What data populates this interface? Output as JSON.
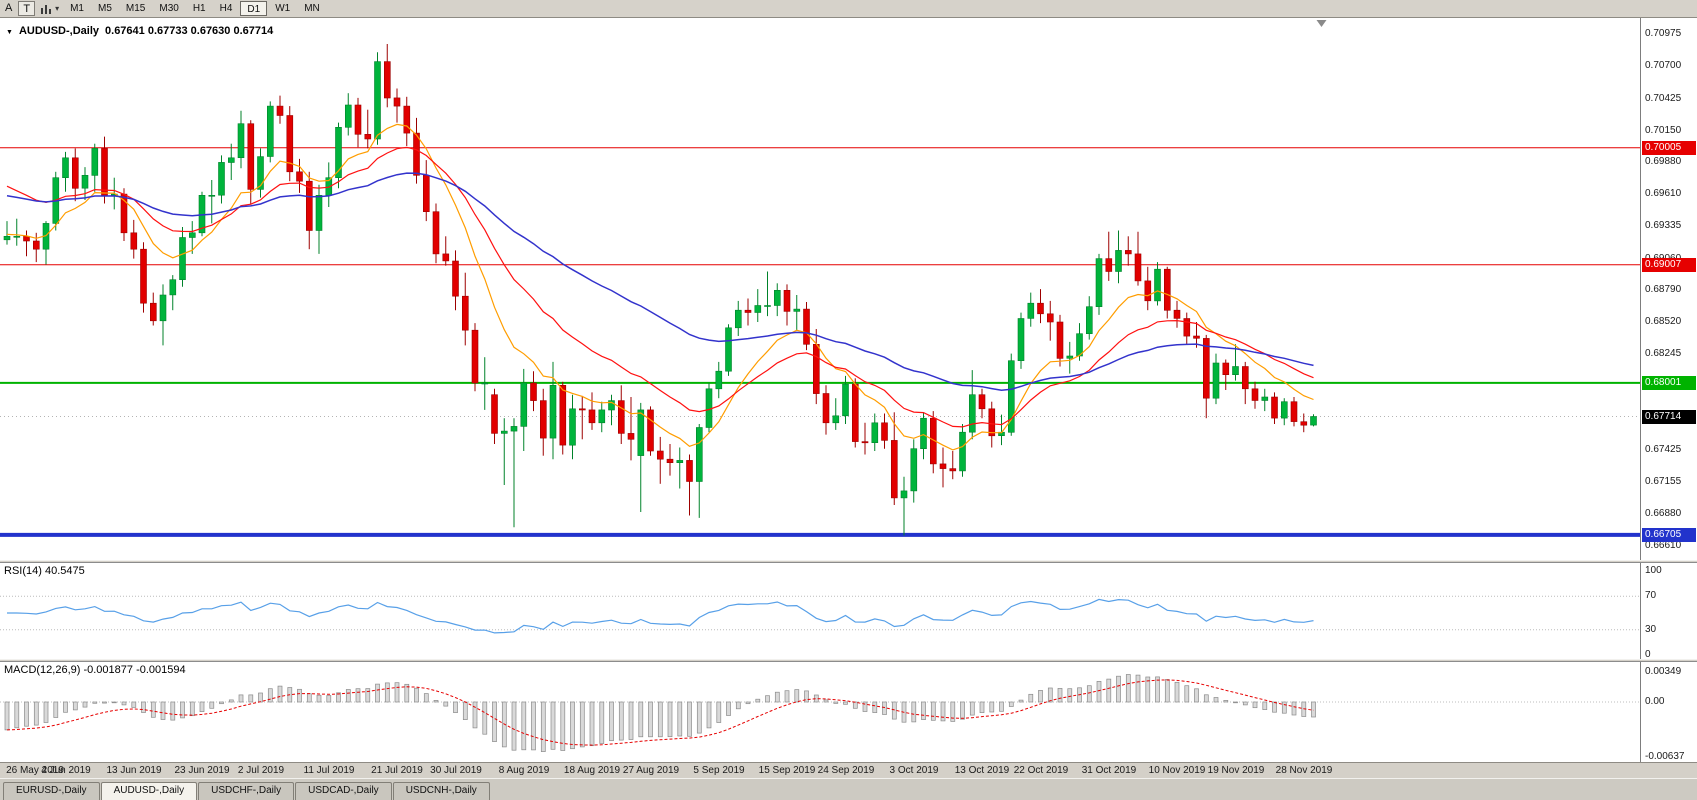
{
  "toolbar": {
    "buttons": [
      {
        "label": "A",
        "boxed": false
      },
      {
        "label": "T",
        "boxed": true
      }
    ],
    "icon": "bar-chart-dropdown-icon",
    "timeframes": [
      {
        "label": "M1"
      },
      {
        "label": "M5"
      },
      {
        "label": "M15"
      },
      {
        "label": "M30"
      },
      {
        "label": "H1"
      },
      {
        "label": "H4"
      },
      {
        "label": "D1",
        "selected": true
      },
      {
        "label": "W1"
      },
      {
        "label": "MN"
      }
    ]
  },
  "chart": {
    "title_symbol": "AUDUSD-,Daily",
    "title_ohlc": "0.67641 0.67733 0.67630 0.67714",
    "price_axis": [
      "0.70975",
      "0.70700",
      "0.70425",
      "0.70150",
      "0.69880",
      "0.69610",
      "0.69335",
      "0.69060",
      "0.68790",
      "0.68520",
      "0.68245",
      "0.67970",
      "0.67700",
      "0.67425",
      "0.67155",
      "0.66880",
      "0.66610"
    ],
    "levels": [
      {
        "label": "0.70005",
        "value": 0.70005,
        "color": "#e60000",
        "weight": 1
      },
      {
        "label": "0.69007",
        "value": 0.69007,
        "color": "#e60000",
        "weight": 1
      },
      {
        "label": "0.68001",
        "value": 0.68001,
        "color": "#00b300",
        "weight": 2
      },
      {
        "label": "0.66705",
        "value": 0.66705,
        "color": "#2233cc",
        "weight": 4
      }
    ],
    "current_price": {
      "label": "0.67714",
      "value": 0.67714,
      "box_color": "#000000"
    },
    "colors": {
      "bull": "#00b43c",
      "bull_edge": "#00822a",
      "bear": "#e10000",
      "bear_edge": "#9d0000",
      "background": "#ffffff",
      "current_price_line": "#b4b4b4"
    }
  },
  "chart_data": {
    "type": "candlestick",
    "symbol": "AUDUSD",
    "timeframe": "Daily",
    "current_bar": {
      "open": 0.67641,
      "high": 0.67733,
      "low": 0.6763,
      "close": 0.67714
    },
    "y_range": {
      "top": 0.71,
      "bottom": 0.666
    },
    "moving_averages": [
      {
        "name": "ma-fast",
        "period": 10,
        "color": "#ff9d00",
        "seed": 0.6927,
        "width": 1.2
      },
      {
        "name": "ma-mid",
        "period": 21,
        "color": "#ff1111",
        "seed": 0.6972,
        "width": 1.2
      },
      {
        "name": "ma-slow",
        "period": 50,
        "color": "#3333cc",
        "seed": 0.6961,
        "width": 1.5
      }
    ],
    "x_labels": [
      {
        "label": "26 May 2019",
        "index": 0
      },
      {
        "label": "4 Jun 2019",
        "index": 6
      },
      {
        "label": "13 Jun 2019",
        "index": 13
      },
      {
        "label": "23 Jun 2019",
        "index": 20
      },
      {
        "label": "2 Jul 2019",
        "index": 26
      },
      {
        "label": "11 Jul 2019",
        "index": 33
      },
      {
        "label": "21 Jul 2019",
        "index": 40
      },
      {
        "label": "30 Jul 2019",
        "index": 46
      },
      {
        "label": "8 Aug 2019",
        "index": 53
      },
      {
        "label": "18 Aug 2019",
        "index": 60
      },
      {
        "label": "27 Aug 2019",
        "index": 66
      },
      {
        "label": "5 Sep 2019",
        "index": 73
      },
      {
        "label": "15 Sep 2019",
        "index": 80
      },
      {
        "label": "24 Sep 2019",
        "index": 86
      },
      {
        "label": "3 Oct 2019",
        "index": 93
      },
      {
        "label": "13 Oct 2019",
        "index": 100
      },
      {
        "label": "22 Oct 2019",
        "index": 106
      },
      {
        "label": "31 Oct 2019",
        "index": 113
      },
      {
        "label": "10 Nov 2019",
        "index": 120
      },
      {
        "label": "19 Nov 2019",
        "index": 126
      },
      {
        "label": "28 Nov 2019",
        "index": 133
      }
    ],
    "candles": [
      [
        0.6922,
        0.6938,
        0.6918,
        0.6925
      ],
      [
        0.6925,
        0.694,
        0.6917,
        0.6925
      ],
      [
        0.6925,
        0.693,
        0.6908,
        0.6921
      ],
      [
        0.6921,
        0.6928,
        0.6903,
        0.6914
      ],
      [
        0.6914,
        0.6938,
        0.6901,
        0.6936
      ],
      [
        0.6936,
        0.698,
        0.693,
        0.6975
      ],
      [
        0.6975,
        0.6997,
        0.6963,
        0.6992
      ],
      [
        0.6992,
        0.7,
        0.6955,
        0.6966
      ],
      [
        0.6966,
        0.6984,
        0.6956,
        0.6977
      ],
      [
        0.6977,
        0.7004,
        0.6963,
        0.7
      ],
      [
        0.7,
        0.701,
        0.6953,
        0.696
      ],
      [
        0.696,
        0.6975,
        0.6948,
        0.6961
      ],
      [
        0.6961,
        0.6966,
        0.6921,
        0.6928
      ],
      [
        0.6928,
        0.6939,
        0.6906,
        0.6914
      ],
      [
        0.6914,
        0.692,
        0.686,
        0.6868
      ],
      [
        0.6868,
        0.6877,
        0.6849,
        0.6853
      ],
      [
        0.6853,
        0.6884,
        0.6832,
        0.6875
      ],
      [
        0.6875,
        0.6892,
        0.6862,
        0.6888
      ],
      [
        0.6888,
        0.6933,
        0.6882,
        0.6924
      ],
      [
        0.6924,
        0.6938,
        0.691,
        0.6928
      ],
      [
        0.6928,
        0.6963,
        0.6925,
        0.696
      ],
      [
        0.696,
        0.6973,
        0.6936,
        0.696
      ],
      [
        0.696,
        0.6994,
        0.6953,
        0.6988
      ],
      [
        0.6988,
        0.7004,
        0.6973,
        0.6992
      ],
      [
        0.6992,
        0.7032,
        0.6983,
        0.7021
      ],
      [
        0.7021,
        0.7024,
        0.6952,
        0.6965
      ],
      [
        0.6965,
        0.7,
        0.6958,
        0.6993
      ],
      [
        0.6993,
        0.704,
        0.6988,
        0.7036
      ],
      [
        0.7036,
        0.7045,
        0.7021,
        0.7028
      ],
      [
        0.7028,
        0.7036,
        0.6972,
        0.698
      ],
      [
        0.698,
        0.6991,
        0.6962,
        0.6972
      ],
      [
        0.6972,
        0.698,
        0.6914,
        0.693
      ],
      [
        0.693,
        0.6969,
        0.691,
        0.696
      ],
      [
        0.696,
        0.6988,
        0.695,
        0.6975
      ],
      [
        0.6975,
        0.7022,
        0.6966,
        0.7018
      ],
      [
        0.7018,
        0.7047,
        0.7011,
        0.7037
      ],
      [
        0.7037,
        0.7043,
        0.7001,
        0.7012
      ],
      [
        0.7012,
        0.7033,
        0.7,
        0.7008
      ],
      [
        0.7008,
        0.7082,
        0.7003,
        0.7074
      ],
      [
        0.7074,
        0.7089,
        0.7035,
        0.7043
      ],
      [
        0.7043,
        0.7051,
        0.7022,
        0.7036
      ],
      [
        0.7036,
        0.7044,
        0.7002,
        0.7013
      ],
      [
        0.7013,
        0.7026,
        0.697,
        0.6977
      ],
      [
        0.6977,
        0.699,
        0.6938,
        0.6946
      ],
      [
        0.6946,
        0.6953,
        0.6902,
        0.691
      ],
      [
        0.691,
        0.6925,
        0.69,
        0.6904
      ],
      [
        0.6904,
        0.6913,
        0.6862,
        0.6874
      ],
      [
        0.6874,
        0.6894,
        0.6832,
        0.6845
      ],
      [
        0.6845,
        0.6851,
        0.6793,
        0.68
      ],
      [
        0.68,
        0.6822,
        0.6777,
        0.68
      ],
      [
        0.679,
        0.6795,
        0.6748,
        0.6757
      ],
      [
        0.6757,
        0.677,
        0.6713,
        0.6759
      ],
      [
        0.6759,
        0.677,
        0.6677,
        0.6763
      ],
      [
        0.6763,
        0.6812,
        0.6742,
        0.68
      ],
      [
        0.68,
        0.681,
        0.6776,
        0.6785
      ],
      [
        0.6785,
        0.6795,
        0.6738,
        0.6753
      ],
      [
        0.6753,
        0.6818,
        0.6735,
        0.6798
      ],
      [
        0.6798,
        0.6801,
        0.6739,
        0.6747
      ],
      [
        0.6747,
        0.679,
        0.6735,
        0.6778
      ],
      [
        0.6778,
        0.6789,
        0.6752,
        0.6777
      ],
      [
        0.6777,
        0.6792,
        0.676,
        0.6766
      ],
      [
        0.6766,
        0.6784,
        0.6758,
        0.6777
      ],
      [
        0.6777,
        0.679,
        0.6764,
        0.6785
      ],
      [
        0.6785,
        0.6798,
        0.6748,
        0.6757
      ],
      [
        0.6757,
        0.6788,
        0.6734,
        0.6752
      ],
      [
        0.6738,
        0.6783,
        0.669,
        0.6777
      ],
      [
        0.6777,
        0.678,
        0.6738,
        0.6742
      ],
      [
        0.6742,
        0.6754,
        0.6714,
        0.6735
      ],
      [
        0.6735,
        0.6748,
        0.6721,
        0.6732
      ],
      [
        0.6732,
        0.6745,
        0.671,
        0.6734
      ],
      [
        0.6734,
        0.6739,
        0.6687,
        0.6716
      ],
      [
        0.6716,
        0.6765,
        0.6685,
        0.6762
      ],
      [
        0.6762,
        0.68,
        0.6758,
        0.6795
      ],
      [
        0.6795,
        0.6818,
        0.6787,
        0.681
      ],
      [
        0.681,
        0.685,
        0.6806,
        0.6847
      ],
      [
        0.6847,
        0.687,
        0.684,
        0.6862
      ],
      [
        0.6862,
        0.6872,
        0.6849,
        0.686
      ],
      [
        0.686,
        0.688,
        0.6852,
        0.6866
      ],
      [
        0.6866,
        0.6895,
        0.6857,
        0.6866
      ],
      [
        0.6866,
        0.6885,
        0.6857,
        0.6879
      ],
      [
        0.6879,
        0.6884,
        0.6849,
        0.6861
      ],
      [
        0.6861,
        0.6875,
        0.6845,
        0.6863
      ],
      [
        0.6863,
        0.6869,
        0.6828,
        0.6833
      ],
      [
        0.6833,
        0.6846,
        0.6782,
        0.6791
      ],
      [
        0.6791,
        0.6798,
        0.6756,
        0.6766
      ],
      [
        0.6766,
        0.6787,
        0.676,
        0.6772
      ],
      [
        0.6772,
        0.6806,
        0.6765,
        0.6799
      ],
      [
        0.6799,
        0.6804,
        0.6745,
        0.675
      ],
      [
        0.675,
        0.6766,
        0.6739,
        0.6749
      ],
      [
        0.6749,
        0.6774,
        0.6742,
        0.6766
      ],
      [
        0.6766,
        0.6774,
        0.6744,
        0.6751
      ],
      [
        0.6751,
        0.6775,
        0.6696,
        0.6702
      ],
      [
        0.6702,
        0.672,
        0.667,
        0.6708
      ],
      [
        0.6708,
        0.6752,
        0.6698,
        0.6744
      ],
      [
        0.6744,
        0.6775,
        0.6735,
        0.677
      ],
      [
        0.677,
        0.6776,
        0.6723,
        0.6731
      ],
      [
        0.6731,
        0.6745,
        0.6711,
        0.6727
      ],
      [
        0.6727,
        0.6742,
        0.6718,
        0.6725
      ],
      [
        0.6725,
        0.6765,
        0.672,
        0.6758
      ],
      [
        0.6758,
        0.6811,
        0.6752,
        0.679
      ],
      [
        0.679,
        0.6795,
        0.677,
        0.6778
      ],
      [
        0.6778,
        0.6784,
        0.6745,
        0.6755
      ],
      [
        0.6755,
        0.6773,
        0.6747,
        0.6758
      ],
      [
        0.6758,
        0.6825,
        0.6755,
        0.6819
      ],
      [
        0.6819,
        0.686,
        0.6812,
        0.6855
      ],
      [
        0.6855,
        0.6877,
        0.6848,
        0.6868
      ],
      [
        0.6868,
        0.688,
        0.6851,
        0.6859
      ],
      [
        0.6859,
        0.687,
        0.6836,
        0.6852
      ],
      [
        0.6852,
        0.6858,
        0.6814,
        0.6821
      ],
      [
        0.6821,
        0.6835,
        0.6808,
        0.6823
      ],
      [
        0.6823,
        0.6851,
        0.6819,
        0.6842
      ],
      [
        0.6842,
        0.6874,
        0.6837,
        0.6865
      ],
      [
        0.6865,
        0.691,
        0.6858,
        0.6906
      ],
      [
        0.6906,
        0.6929,
        0.6887,
        0.6895
      ],
      [
        0.6895,
        0.693,
        0.6885,
        0.6913
      ],
      [
        0.6913,
        0.6925,
        0.69,
        0.691
      ],
      [
        0.691,
        0.6929,
        0.6883,
        0.6887
      ],
      [
        0.6887,
        0.6899,
        0.6862,
        0.687
      ],
      [
        0.687,
        0.6903,
        0.6866,
        0.6897
      ],
      [
        0.6897,
        0.6899,
        0.6855,
        0.6862
      ],
      [
        0.6862,
        0.687,
        0.6847,
        0.6855
      ],
      [
        0.6855,
        0.686,
        0.6833,
        0.684
      ],
      [
        0.684,
        0.6852,
        0.683,
        0.6838
      ],
      [
        0.6838,
        0.6841,
        0.677,
        0.6787
      ],
      [
        0.6787,
        0.6825,
        0.6782,
        0.6817
      ],
      [
        0.6817,
        0.682,
        0.6794,
        0.6807
      ],
      [
        0.6807,
        0.6833,
        0.6802,
        0.6814
      ],
      [
        0.6814,
        0.6818,
        0.6782,
        0.6795
      ],
      [
        0.6795,
        0.6801,
        0.6778,
        0.6785
      ],
      [
        0.6785,
        0.6795,
        0.6776,
        0.6788
      ],
      [
        0.6788,
        0.6792,
        0.6765,
        0.677
      ],
      [
        0.677,
        0.6787,
        0.6764,
        0.6784
      ],
      [
        0.6784,
        0.6788,
        0.6763,
        0.6767
      ],
      [
        0.6767,
        0.6774,
        0.6758,
        0.6764
      ],
      [
        0.67641,
        0.67733,
        0.6763,
        0.67714
      ]
    ]
  },
  "rsi": {
    "label": "RSI(14) 40.5475",
    "period": 14,
    "current_value": "40.5475",
    "color": "#58a0e8",
    "levels": [
      70,
      30
    ],
    "axis_ticks": [
      {
        "label": "100",
        "value": 100
      },
      {
        "label": "70",
        "value": 70
      },
      {
        "label": "30",
        "value": 30
      },
      {
        "label": "0",
        "value": 0
      }
    ]
  },
  "macd": {
    "label": "MACD(12,26,9) -0.001877 -0.001594",
    "fast": 12,
    "slow": 26,
    "signal": 9,
    "macd_value": "-0.001877",
    "signal_value": "-0.001594",
    "seed_offset": 0.0035,
    "histogram_fill": "#d9d9d9",
    "histogram_edge": "#8a8a8a",
    "signal_color": "#e60000",
    "axis_ticks": [
      {
        "label": "0.00349",
        "value": 0.00349
      },
      {
        "label": "0.00",
        "value": 0
      },
      {
        "label": "-0.00637",
        "value": -0.00637
      }
    ]
  },
  "tabs": [
    {
      "label": "EURUSD-,Daily",
      "active": false
    },
    {
      "label": "AUDUSD-,Daily",
      "active": true
    },
    {
      "label": "USDCHF-,Daily",
      "active": false
    },
    {
      "label": "USDCAD-,Daily",
      "active": false
    },
    {
      "label": "USDCNH-,Daily",
      "active": false
    }
  ]
}
